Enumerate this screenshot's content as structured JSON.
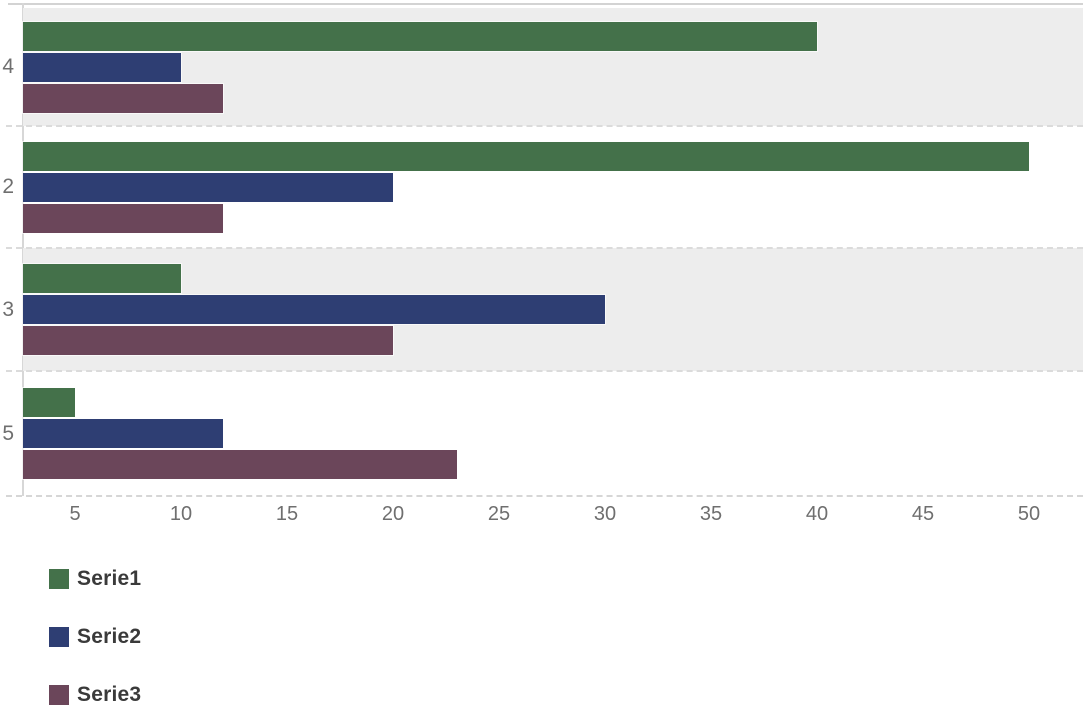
{
  "chart_data": {
    "type": "bar",
    "orientation": "horizontal",
    "title": "",
    "categories": [
      "4",
      "2",
      "3",
      "5"
    ],
    "series": [
      {
        "name": "Serie1",
        "color": "#44714A",
        "values": [
          40,
          50,
          10,
          5
        ]
      },
      {
        "name": "Serie2",
        "color": "#2E3E73",
        "values": [
          10,
          20,
          30,
          12
        ]
      },
      {
        "name": "Serie3",
        "color": "#6B465A",
        "values": [
          12,
          12,
          20,
          23
        ]
      }
    ],
    "x_axis": {
      "tick_labels": [
        "5",
        "10",
        "15",
        "20",
        "25",
        "30",
        "35",
        "40",
        "45",
        "50"
      ],
      "tick_values": [
        5,
        10,
        15,
        20,
        25,
        30,
        35,
        40,
        45,
        50
      ],
      "visible_value_range": [
        2.5,
        52.5
      ]
    },
    "legend": {
      "position": "bottom-left",
      "entries": [
        "Serie1",
        "Serie2",
        "Serie3"
      ]
    },
    "grid": "dashed horizontal separators between category bands, dashed bottom axis, no vertical gridlines",
    "style": {
      "band_fill": "#EDEDED",
      "alternating_bands": true,
      "separator_color": "#DBDBDB",
      "axis_line_color": "#D5D5D5",
      "tick_text_color": "#6F6F6F",
      "legend_text_color": "#3A3A3A"
    }
  }
}
